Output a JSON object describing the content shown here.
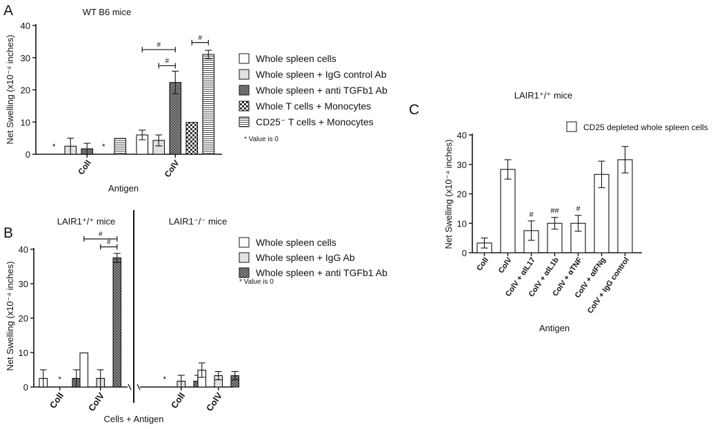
{
  "figure": {
    "legend_note": "* Value is 0"
  },
  "chart_data": [
    {
      "panel_letter": "A",
      "type": "bar",
      "title": "WT B6 mice",
      "xlabel": "Antigen",
      "ylabel": "Net Swelling (x10⁻⁴ inches)",
      "ylim": [
        0,
        40
      ],
      "yticks": [
        0,
        10,
        20,
        30,
        40
      ],
      "grid": false,
      "categories": [
        "ColI",
        "ColV"
      ],
      "series": [
        {
          "name": "Whole spleen cells",
          "pattern": "open",
          "values": [
            0,
            6.0
          ],
          "errors": [
            0,
            1.5
          ],
          "zero_mark": [
            true,
            false
          ]
        },
        {
          "name": "Whole spleen + IgG control Ab",
          "pattern": "light",
          "values": [
            2.5,
            4.3
          ],
          "errors": [
            2.5,
            1.7
          ],
          "zero_mark": [
            false,
            false
          ]
        },
        {
          "name": "Whole spleen + anti TGFb1 Ab",
          "pattern": "dark",
          "values": [
            1.7,
            22.3
          ],
          "errors": [
            1.7,
            3.5
          ],
          "zero_mark": [
            false,
            false
          ]
        },
        {
          "name": "Whole T cells + Monocytes",
          "pattern": "checker",
          "values": [
            0,
            9.9
          ],
          "errors": [
            0,
            0
          ],
          "zero_mark": [
            true,
            false
          ]
        },
        {
          "name": "CD25⁻ T cells + Monocytes",
          "pattern": "hstripe",
          "values": [
            4.9,
            31.0
          ],
          "errors": [
            0,
            1.3
          ],
          "zero_mark": [
            false,
            false
          ]
        }
      ],
      "annotations": [
        {
          "label": "#",
          "from_series": 0,
          "to_series": 2,
          "category": 1,
          "y": 32.5
        },
        {
          "label": "#",
          "from_series": 1,
          "to_series": 2,
          "category": 1,
          "y": 27.5
        },
        {
          "label": "#",
          "from_series": 3,
          "to_series": 4,
          "category": 1,
          "y": 34.7
        }
      ]
    },
    {
      "panel_letter": "B",
      "type": "bar",
      "xlabel": "Cells + Antigen",
      "ylabel": "Net Swelling (x10⁻⁴ inches)",
      "ylim": [
        0,
        40
      ],
      "yticks": [
        0,
        10,
        20,
        30,
        40
      ],
      "grid": false,
      "groups": [
        {
          "label": "LAIR1⁺/⁺ mice",
          "categories": [
            "ColI",
            "ColV"
          ]
        },
        {
          "label": "LAIR1⁻/⁻ mice",
          "categories": [
            "ColI",
            "ColV"
          ]
        }
      ],
      "series": [
        {
          "name": "Whole spleen cells",
          "pattern": "open",
          "values": [
            2.5,
            9.9,
            0,
            4.9
          ],
          "errors": [
            2.5,
            0,
            0,
            2.1
          ],
          "zero_mark": [
            false,
            false,
            true,
            false
          ]
        },
        {
          "name": "Whole spleen + IgG Ab",
          "pattern": "light",
          "values": [
            0,
            2.5,
            1.7,
            3.3
          ],
          "errors": [
            0,
            2.5,
            1.7,
            1.2
          ],
          "zero_mark": [
            true,
            false,
            false,
            false
          ]
        },
        {
          "name": "Whole spleen + anti TGFb1 Ab",
          "pattern": "dark",
          "values": [
            2.5,
            37.5,
            1.7,
            3.3
          ],
          "errors": [
            2.5,
            1.3,
            1.7,
            1.2
          ],
          "zero_mark": [
            false,
            false,
            false,
            false
          ]
        }
      ],
      "annotations": [
        {
          "label": "#",
          "from_series": 0,
          "to_series": 2,
          "category": 1,
          "y": 43.0
        },
        {
          "label": "#",
          "from_series": 1,
          "to_series": 2,
          "category": 1,
          "y": 40.7
        }
      ]
    },
    {
      "panel_letter": "C",
      "type": "bar",
      "title": "LAIR1⁺/⁺ mice",
      "xlabel": "Antigen",
      "ylabel": "Net Swelling (x10⁻⁴ inches)",
      "ylim": [
        0,
        40
      ],
      "yticks": [
        0,
        10,
        20,
        30,
        40
      ],
      "grid": false,
      "categories": [
        "ColI",
        "ColV",
        "ColV + αIL17",
        "ColV + αIL1b",
        "ColV + αTNF",
        "ColV + αIFNg",
        "ColV + IgG control"
      ],
      "series": [
        {
          "name": "CD25 depleted whole spleen cells",
          "pattern": "open",
          "values": [
            3.3,
            28.3,
            7.5,
            10.0,
            10.0,
            26.6,
            31.6
          ],
          "errors": [
            1.7,
            3.3,
            3.3,
            2.0,
            2.7,
            4.5,
            4.5
          ]
        }
      ],
      "annotations": [
        {
          "label": "#",
          "category": 2
        },
        {
          "label": "##",
          "category": 3
        },
        {
          "label": "#",
          "category": 4
        }
      ]
    }
  ]
}
